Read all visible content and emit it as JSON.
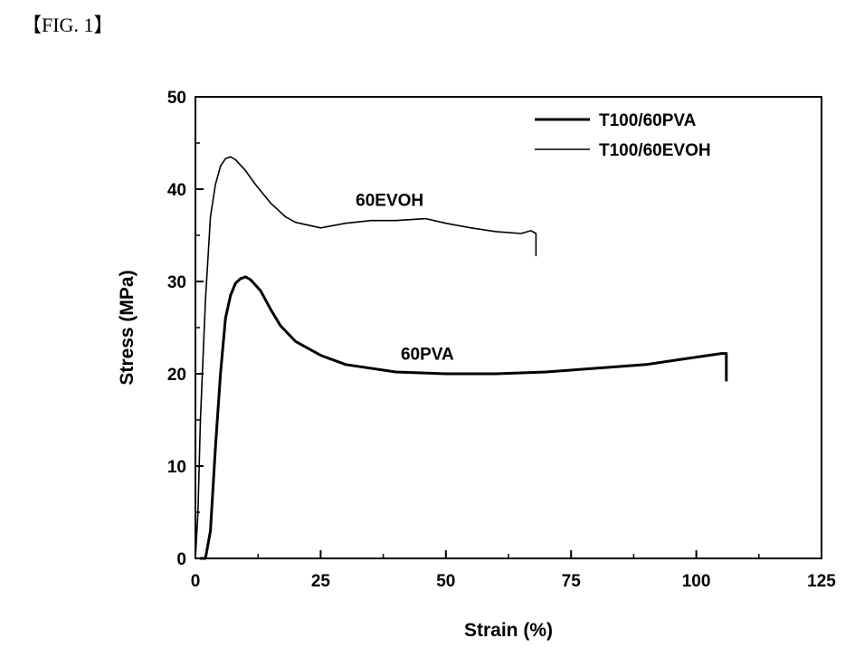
{
  "figure_label": "【FIG. 1】",
  "chart_data": {
    "type": "line",
    "xlabel": "Strain (%)",
    "ylabel": "Stress (MPa)",
    "xlim": [
      0,
      125
    ],
    "ylim": [
      0,
      50
    ],
    "x_ticks": [
      0,
      25,
      50,
      75,
      100,
      125
    ],
    "y_ticks": [
      0,
      10,
      20,
      30,
      40,
      50
    ],
    "legend_position": "top-right",
    "series": [
      {
        "name": "T100/60PVA",
        "annotation": "60PVA",
        "annotation_at": [
          41,
          21.5
        ],
        "color": "#000000",
        "points": [
          [
            1,
            0
          ],
          [
            2,
            0
          ],
          [
            3,
            3
          ],
          [
            4,
            12
          ],
          [
            5,
            20
          ],
          [
            6,
            26
          ],
          [
            7,
            28.5
          ],
          [
            8,
            29.8
          ],
          [
            9,
            30.3
          ],
          [
            10,
            30.5
          ],
          [
            11,
            30.2
          ],
          [
            13,
            29
          ],
          [
            15,
            27
          ],
          [
            17,
            25.2
          ],
          [
            20,
            23.5
          ],
          [
            25,
            22
          ],
          [
            30,
            21
          ],
          [
            40,
            20.2
          ],
          [
            50,
            20
          ],
          [
            60,
            20
          ],
          [
            70,
            20.2
          ],
          [
            80,
            20.6
          ],
          [
            90,
            21
          ],
          [
            100,
            21.8
          ],
          [
            105,
            22.2
          ],
          [
            106,
            22.2
          ],
          [
            106,
            19.3
          ]
        ]
      },
      {
        "name": "T100/60EVOH",
        "annotation": "60EVOH",
        "annotation_at": [
          32,
          38.2
        ],
        "color": "#000000",
        "points": [
          [
            0,
            0
          ],
          [
            0.5,
            5
          ],
          [
            1,
            15
          ],
          [
            2,
            28
          ],
          [
            3,
            37
          ],
          [
            4,
            40.5
          ],
          [
            5,
            42.5
          ],
          [
            6,
            43.3
          ],
          [
            7,
            43.5
          ],
          [
            8,
            43.2
          ],
          [
            10,
            42
          ],
          [
            12,
            40.5
          ],
          [
            15,
            38.5
          ],
          [
            18,
            37
          ],
          [
            20,
            36.4
          ],
          [
            25,
            35.8
          ],
          [
            30,
            36.3
          ],
          [
            35,
            36.6
          ],
          [
            40,
            36.6
          ],
          [
            46,
            36.8
          ],
          [
            50,
            36.3
          ],
          [
            55,
            35.8
          ],
          [
            60,
            35.4
          ],
          [
            65,
            35.2
          ],
          [
            67,
            35.5
          ],
          [
            68,
            35.2
          ],
          [
            68,
            32.8
          ]
        ]
      }
    ]
  }
}
